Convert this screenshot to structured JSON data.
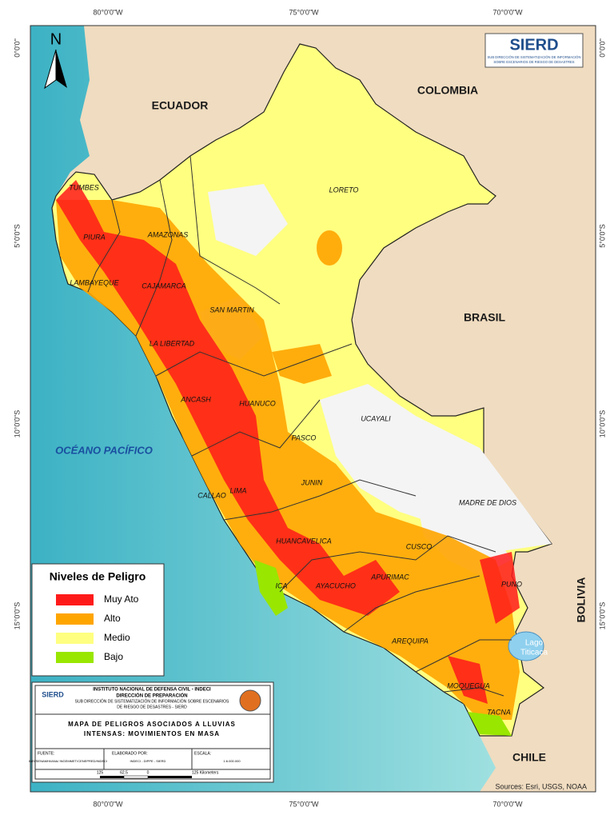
{
  "map": {
    "grid": {
      "top": [
        "80°0'0\"W",
        "75°0'0\"W",
        "70°0'0\"W"
      ],
      "bottom": [
        "80°0'0\"W",
        "75°0'0\"W",
        "70°0'0\"W"
      ],
      "left": [
        "0°0'0\"",
        "5°0'0\"S",
        "10°0'0\"S",
        "15°0'0\"S"
      ],
      "right": [
        "0°0'0\"",
        "5°0'0\"S",
        "10°0'0\"S",
        "15°0'0\"S"
      ]
    },
    "north": "N",
    "countries": [
      "ECUADOR",
      "COLOMBIA",
      "BRASIL",
      "BOLIVIA",
      "CHILE"
    ],
    "ocean": "OCÉANO PACÍFICO",
    "regions": [
      "TUMBES",
      "PIURA",
      "LAMBAYEQUE",
      "CAJAMARCA",
      "AMAZONAS",
      "LORETO",
      "SAN MARTIN",
      "LA LIBERTAD",
      "ANCASH",
      "HUANUCO",
      "UCAYALI",
      "PASCO",
      "JUNIN",
      "LIMA",
      "CALLAO",
      "HUANCAVELICA",
      "ICA",
      "AYACUCHO",
      "APURIMAC",
      "CUSCO",
      "MADRE DE DIOS",
      "PUNO",
      "AREQUIPA",
      "MOQUEGUA",
      "TACNA"
    ],
    "lake": [
      "Lago",
      "Titicaca"
    ],
    "attribution": "Sources: Esri, USGS, NOAA"
  },
  "logo": {
    "name": "SIERD",
    "subtitle": [
      "SUB DIRECCIÓN DE SISTEMATIZACIÓN DE INFORMACIÓN",
      "SOBRE ESCENARIOS DE RIESGO DE DESASTRES"
    ]
  },
  "legend": {
    "title": "Niveles de Peligro",
    "items": [
      {
        "label": "Muy Ato",
        "color": "#ff1a1a"
      },
      {
        "label": "Alto",
        "color": "#ffa500"
      },
      {
        "label": "Medio",
        "color": "#ffff80"
      },
      {
        "label": "Bajo",
        "color": "#99e600"
      }
    ]
  },
  "info": {
    "logo": "SIERD",
    "institute": "INSTITUTO NACIONAL DE DEFENSA CIVIL - INDECI",
    "direction": "DIRECCIÓN DE PREPARACIÓN",
    "subdirection": [
      "SUB DIRECCIÓN DE SISTEMATIZACIÓN DE INFORMACIÓN SOBRE ESCENARIOS",
      "DE RIESGO DE DESASTRES - SIERD"
    ],
    "title": [
      "MAPA DE PELIGROS ASOCIADOS A LLUVIAS",
      "INTENSAS: MOVIMIENTOS EN MASA"
    ],
    "source_label": "FUENTE:",
    "source": "INEI/SENAMHI/ANA/ INGEMMET/CENEPRED/INDECI",
    "author_label": "ELABORADO POR:",
    "author": "INDECI - DIPPE - SIERD",
    "scale_label": "ESCALA:",
    "scale": "1:6.000.000",
    "scalebar": [
      "125",
      "62.5",
      "0",
      "125 Kilometers"
    ]
  }
}
